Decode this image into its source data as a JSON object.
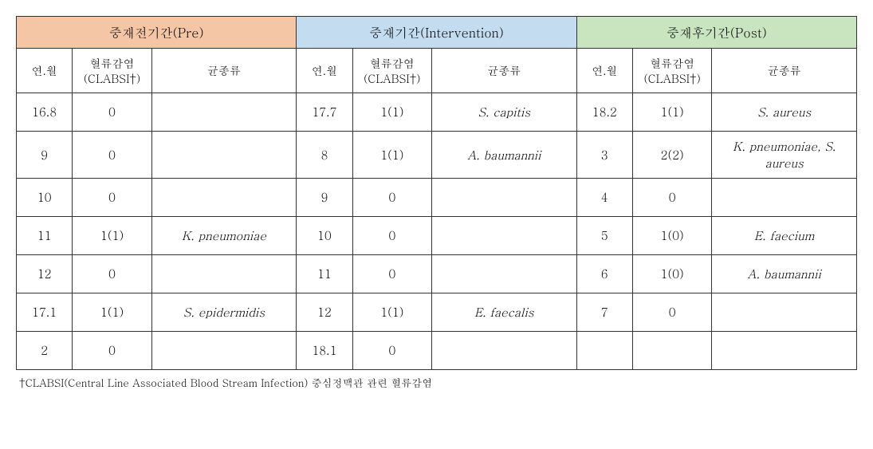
{
  "periods": {
    "pre": {
      "label": "중재전기간(Pre)",
      "bg_color": "#f5c6a5"
    },
    "intervention": {
      "label": "중재기간(Intervention)",
      "bg_color": "#c3dcef"
    },
    "post": {
      "label": "중재후기간(Post)",
      "bg_color": "#c9e5c0"
    }
  },
  "subheaders": {
    "year_month": "연.월",
    "clabsi_line1": "혈류감염",
    "clabsi_line2": "(CLABSI†)",
    "species": "균종류"
  },
  "rows": [
    {
      "pre": {
        "ym": "16.8",
        "clabsi": "0",
        "species": ""
      },
      "int": {
        "ym": "17.7",
        "clabsi": "1(1)",
        "species": "S. capitis"
      },
      "post": {
        "ym": "18.2",
        "clabsi": "1(1)",
        "species": "S. aureus"
      }
    },
    {
      "pre": {
        "ym": "9",
        "clabsi": "0",
        "species": ""
      },
      "int": {
        "ym": "8",
        "clabsi": "1(1)",
        "species": "A. baumannii"
      },
      "post": {
        "ym": "3",
        "clabsi": "2(2)",
        "species": "K. pneumoniae, S. aureus"
      }
    },
    {
      "pre": {
        "ym": "10",
        "clabsi": "0",
        "species": ""
      },
      "int": {
        "ym": "9",
        "clabsi": "0",
        "species": ""
      },
      "post": {
        "ym": "4",
        "clabsi": "0",
        "species": ""
      }
    },
    {
      "pre": {
        "ym": "11",
        "clabsi": "1(1)",
        "species": "K. pneumoniae"
      },
      "int": {
        "ym": "10",
        "clabsi": "0",
        "species": ""
      },
      "post": {
        "ym": "5",
        "clabsi": "1(0)",
        "species": "E. faecium"
      }
    },
    {
      "pre": {
        "ym": "12",
        "clabsi": "0",
        "species": ""
      },
      "int": {
        "ym": "11",
        "clabsi": "0",
        "species": ""
      },
      "post": {
        "ym": "6",
        "clabsi": "1(0)",
        "species": "A. baumannii"
      }
    },
    {
      "pre": {
        "ym": "17.1",
        "clabsi": "1(1)",
        "species": "S. epidermidis"
      },
      "int": {
        "ym": "12",
        "clabsi": "1(1)",
        "species": "E. faecalis"
      },
      "post": {
        "ym": "7",
        "clabsi": "0",
        "species": ""
      }
    },
    {
      "pre": {
        "ym": "2",
        "clabsi": "0",
        "species": ""
      },
      "int": {
        "ym": "18.1",
        "clabsi": "0",
        "species": ""
      },
      "post": {
        "ym": "",
        "clabsi": "",
        "species": ""
      }
    }
  ],
  "footnote": "†CLABSI(Central Line Associated Blood Stream Infection) 중심정맥관 관련 혈류감염"
}
